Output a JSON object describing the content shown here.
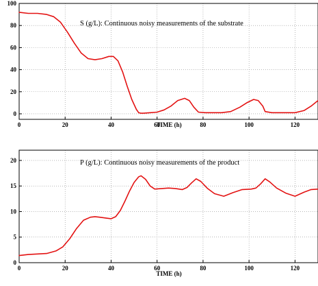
{
  "colors": {
    "line": "#e31212",
    "grid": "#8a8a8a",
    "axis": "#000000"
  },
  "chart_data": [
    {
      "type": "line",
      "title": "",
      "annotation": "S (g/L): Continuous noisy measurements of the substrate",
      "xlabel": "TIME (h)",
      "ylabel": "",
      "xlim": [
        0,
        130
      ],
      "ylim": [
        -5,
        100
      ],
      "grid": true,
      "xticks": [
        0,
        20,
        40,
        60,
        80,
        100,
        120
      ],
      "yticks": [
        0,
        20,
        40,
        60,
        80,
        100
      ],
      "series": [
        {
          "x": [
            0,
            4,
            8,
            12,
            15,
            18,
            21,
            24,
            27,
            30,
            33,
            36,
            39,
            41,
            43,
            45,
            47,
            49,
            51,
            52,
            53,
            54,
            57,
            60,
            63,
            66,
            69,
            72,
            74,
            76,
            78,
            81,
            84,
            88,
            92,
            96,
            99,
            102,
            104,
            106,
            107,
            110,
            115,
            120,
            124,
            127,
            130
          ],
          "y": [
            92,
            91,
            91,
            90,
            88,
            83,
            74,
            64,
            55,
            50,
            49,
            50,
            52,
            52,
            48,
            38,
            25,
            13,
            4,
            1,
            0.5,
            0.5,
            1,
            1.5,
            3.5,
            7,
            12,
            14,
            12,
            6,
            1.5,
            1,
            1,
            1,
            2,
            6,
            10,
            13,
            12,
            7,
            2,
            1,
            1,
            1,
            3,
            7,
            12
          ]
        }
      ]
    },
    {
      "type": "line",
      "title": "",
      "annotation": "P (g/L): Continuous noisy measurements of the product",
      "xlabel": "TIME (h)",
      "ylabel": "",
      "xlim": [
        0,
        130
      ],
      "ylim": [
        0,
        22
      ],
      "grid": true,
      "xticks": [
        0,
        20,
        40,
        60,
        80,
        100,
        120
      ],
      "yticks": [
        0,
        5,
        10,
        15,
        20
      ],
      "series": [
        {
          "x": [
            0,
            4,
            8,
            12,
            16,
            19,
            22,
            25,
            28,
            31,
            33,
            35,
            38,
            40,
            42,
            44,
            46,
            48,
            50,
            52,
            53,
            55,
            57,
            59,
            62,
            65,
            68,
            71,
            73,
            75,
            77,
            79,
            82,
            85,
            89,
            93,
            97,
            101,
            103,
            105,
            107,
            109,
            112,
            116,
            120,
            124,
            127,
            130
          ],
          "y": [
            1.4,
            1.6,
            1.7,
            1.8,
            2.3,
            3.1,
            4.7,
            6.7,
            8.3,
            8.9,
            9.0,
            8.9,
            8.7,
            8.6,
            9.0,
            10.2,
            12.0,
            14.0,
            15.7,
            16.8,
            17.0,
            16.3,
            15.0,
            14.4,
            14.5,
            14.6,
            14.5,
            14.3,
            14.7,
            15.6,
            16.4,
            15.9,
            14.5,
            13.5,
            13.0,
            13.7,
            14.3,
            14.4,
            14.6,
            15.4,
            16.4,
            15.8,
            14.6,
            13.6,
            13.0,
            13.8,
            14.3,
            14.4
          ]
        }
      ]
    }
  ]
}
